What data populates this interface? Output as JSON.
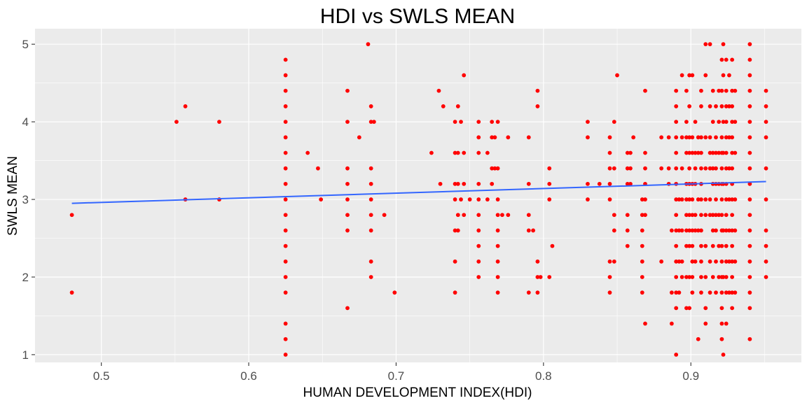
{
  "chart_data": {
    "type": "scatter",
    "title": "HDI vs SWLS MEAN",
    "xlabel": "HUMAN DEVELOPMENT INDEX(HDI)",
    "ylabel": "SWLS MEAN",
    "xlim": [
      0.455,
      0.975
    ],
    "ylim": [
      0.9,
      5.2
    ],
    "x_ticks": [
      0.5,
      0.6,
      0.7,
      0.8,
      0.9
    ],
    "x_tick_labels": [
      "0.5",
      "0.6",
      "0.7",
      "0.8",
      "0.9"
    ],
    "y_ticks": [
      1,
      2,
      3,
      4,
      5
    ],
    "y_tick_labels": [
      "1",
      "2",
      "3",
      "4",
      "5"
    ],
    "grid": true,
    "background_color": "#EBEBEB",
    "grid_color": "#FFFFFF",
    "point_color": "#FF0000",
    "line_color": "#3366FF",
    "trend_line": {
      "x": [
        0.48,
        0.951
      ],
      "y": [
        2.95,
        3.23
      ]
    },
    "points": [
      [
        0.48,
        2.8
      ],
      [
        0.48,
        1.8
      ],
      [
        0.551,
        4.0
      ],
      [
        0.557,
        4.2
      ],
      [
        0.557,
        3.0
      ],
      [
        0.58,
        4.0
      ],
      [
        0.58,
        3.0
      ],
      [
        0.625,
        4.8
      ],
      [
        0.625,
        4.6
      ],
      [
        0.625,
        4.4
      ],
      [
        0.625,
        4.2
      ],
      [
        0.625,
        4.0
      ],
      [
        0.625,
        3.8
      ],
      [
        0.625,
        3.6
      ],
      [
        0.625,
        3.4
      ],
      [
        0.625,
        3.2
      ],
      [
        0.625,
        3.0
      ],
      [
        0.625,
        2.8
      ],
      [
        0.625,
        2.6
      ],
      [
        0.625,
        2.4
      ],
      [
        0.625,
        2.2
      ],
      [
        0.625,
        2.0
      ],
      [
        0.625,
        1.8
      ],
      [
        0.625,
        1.4
      ],
      [
        0.625,
        1.2
      ],
      [
        0.625,
        1.0
      ],
      [
        0.64,
        3.6
      ],
      [
        0.647,
        3.4
      ],
      [
        0.649,
        3.0
      ],
      [
        0.667,
        4.4
      ],
      [
        0.667,
        4.0
      ],
      [
        0.667,
        3.4
      ],
      [
        0.667,
        3.2
      ],
      [
        0.667,
        3.0
      ],
      [
        0.667,
        2.8
      ],
      [
        0.667,
        2.6
      ],
      [
        0.667,
        1.6
      ],
      [
        0.675,
        3.8
      ],
      [
        0.681,
        5.0
      ],
      [
        0.683,
        4.2
      ],
      [
        0.683,
        4.0
      ],
      [
        0.683,
        3.4
      ],
      [
        0.683,
        3.2
      ],
      [
        0.683,
        3.0
      ],
      [
        0.683,
        2.8
      ],
      [
        0.683,
        2.6
      ],
      [
        0.683,
        2.2
      ],
      [
        0.683,
        2.0
      ],
      [
        0.685,
        4.0
      ],
      [
        0.692,
        2.8
      ],
      [
        0.699,
        1.8
      ],
      [
        0.724,
        3.6
      ],
      [
        0.729,
        4.4
      ],
      [
        0.73,
        3.2
      ],
      [
        0.732,
        4.2
      ],
      [
        0.74,
        4.0
      ],
      [
        0.74,
        3.6
      ],
      [
        0.74,
        3.2
      ],
      [
        0.74,
        3.0
      ],
      [
        0.74,
        2.6
      ],
      [
        0.74,
        2.2
      ],
      [
        0.74,
        1.8
      ],
      [
        0.742,
        4.2
      ],
      [
        0.742,
        3.6
      ],
      [
        0.742,
        3.2
      ],
      [
        0.742,
        2.8
      ],
      [
        0.742,
        2.6
      ],
      [
        0.744,
        4.0
      ],
      [
        0.744,
        3.0
      ],
      [
        0.746,
        4.6
      ],
      [
        0.746,
        3.6
      ],
      [
        0.746,
        3.2
      ],
      [
        0.746,
        2.8
      ],
      [
        0.75,
        3.0
      ],
      [
        0.756,
        4.0
      ],
      [
        0.756,
        3.8
      ],
      [
        0.756,
        3.6
      ],
      [
        0.756,
        3.2
      ],
      [
        0.756,
        3.0
      ],
      [
        0.756,
        2.8
      ],
      [
        0.756,
        2.6
      ],
      [
        0.756,
        2.4
      ],
      [
        0.756,
        2.2
      ],
      [
        0.756,
        2.0
      ],
      [
        0.762,
        3.6
      ],
      [
        0.762,
        3.0
      ],
      [
        0.765,
        4.0
      ],
      [
        0.765,
        3.8
      ],
      [
        0.765,
        3.4
      ],
      [
        0.765,
        3.2
      ],
      [
        0.767,
        3.8
      ],
      [
        0.767,
        3.4
      ],
      [
        0.769,
        4.0
      ],
      [
        0.769,
        3.4
      ],
      [
        0.769,
        3.0
      ],
      [
        0.769,
        2.8
      ],
      [
        0.769,
        2.6
      ],
      [
        0.769,
        2.4
      ],
      [
        0.769,
        2.2
      ],
      [
        0.769,
        2.0
      ],
      [
        0.769,
        1.8
      ],
      [
        0.772,
        2.8
      ],
      [
        0.776,
        3.8
      ],
      [
        0.776,
        2.8
      ],
      [
        0.79,
        3.8
      ],
      [
        0.79,
        3.2
      ],
      [
        0.79,
        2.8
      ],
      [
        0.79,
        2.6
      ],
      [
        0.79,
        1.8
      ],
      [
        0.793,
        2.6
      ],
      [
        0.796,
        4.4
      ],
      [
        0.796,
        4.2
      ],
      [
        0.796,
        2.2
      ],
      [
        0.796,
        2.0
      ],
      [
        0.796,
        1.8
      ],
      [
        0.798,
        2.0
      ],
      [
        0.804,
        3.4
      ],
      [
        0.804,
        3.2
      ],
      [
        0.804,
        3.0
      ],
      [
        0.804,
        2.0
      ],
      [
        0.806,
        2.4
      ],
      [
        0.83,
        4.0
      ],
      [
        0.83,
        3.8
      ],
      [
        0.83,
        3.2
      ],
      [
        0.83,
        3.0
      ],
      [
        0.838,
        3.2
      ],
      [
        0.845,
        3.8
      ],
      [
        0.845,
        3.6
      ],
      [
        0.845,
        3.4
      ],
      [
        0.845,
        3.2
      ],
      [
        0.845,
        3.0
      ],
      [
        0.845,
        2.2
      ],
      [
        0.845,
        2.0
      ],
      [
        0.845,
        1.8
      ],
      [
        0.848,
        4.0
      ],
      [
        0.848,
        3.4
      ],
      [
        0.848,
        2.8
      ],
      [
        0.848,
        2.6
      ],
      [
        0.848,
        2.2
      ],
      [
        0.85,
        4.6
      ],
      [
        0.857,
        3.6
      ],
      [
        0.857,
        3.4
      ],
      [
        0.857,
        3.2
      ],
      [
        0.857,
        2.8
      ],
      [
        0.857,
        2.6
      ],
      [
        0.857,
        2.4
      ],
      [
        0.859,
        3.6
      ],
      [
        0.859,
        3.4
      ],
      [
        0.859,
        3.2
      ],
      [
        0.861,
        3.8
      ],
      [
        0.867,
        3.0
      ],
      [
        0.867,
        2.8
      ],
      [
        0.867,
        2.6
      ],
      [
        0.867,
        2.4
      ],
      [
        0.867,
        2.2
      ],
      [
        0.867,
        2.0
      ],
      [
        0.867,
        1.8
      ],
      [
        0.869,
        4.4
      ],
      [
        0.869,
        3.6
      ],
      [
        0.869,
        3.4
      ],
      [
        0.869,
        3.2
      ],
      [
        0.869,
        3.0
      ],
      [
        0.869,
        2.8
      ],
      [
        0.869,
        1.4
      ],
      [
        0.88,
        3.8
      ],
      [
        0.88,
        3.4
      ],
      [
        0.88,
        2.2
      ],
      [
        0.885,
        3.8
      ],
      [
        0.885,
        3.4
      ],
      [
        0.885,
        3.2
      ],
      [
        0.887,
        2.6
      ],
      [
        0.887,
        1.8
      ],
      [
        0.887,
        1.4
      ],
      [
        0.89,
        4.4
      ],
      [
        0.89,
        4.2
      ],
      [
        0.89,
        4.0
      ],
      [
        0.89,
        3.8
      ],
      [
        0.89,
        3.6
      ],
      [
        0.89,
        3.4
      ],
      [
        0.89,
        3.2
      ],
      [
        0.89,
        3.0
      ],
      [
        0.89,
        2.8
      ],
      [
        0.89,
        2.6
      ],
      [
        0.89,
        2.4
      ],
      [
        0.89,
        2.2
      ],
      [
        0.89,
        2.0
      ],
      [
        0.89,
        1.8
      ],
      [
        0.89,
        1.6
      ],
      [
        0.89,
        1.0
      ],
      [
        0.892,
        3.0
      ],
      [
        0.892,
        2.6
      ],
      [
        0.892,
        2.2
      ],
      [
        0.892,
        1.8
      ],
      [
        0.894,
        4.6
      ],
      [
        0.894,
        3.8
      ],
      [
        0.894,
        3.4
      ],
      [
        0.894,
        3.0
      ],
      [
        0.894,
        2.6
      ],
      [
        0.894,
        2.2
      ],
      [
        0.894,
        2.0
      ],
      [
        0.897,
        4.4
      ],
      [
        0.897,
        4.0
      ],
      [
        0.897,
        3.8
      ],
      [
        0.897,
        3.6
      ],
      [
        0.897,
        3.2
      ],
      [
        0.897,
        3.0
      ],
      [
        0.897,
        2.8
      ],
      [
        0.897,
        2.6
      ],
      [
        0.897,
        2.4
      ],
      [
        0.897,
        2.0
      ],
      [
        0.897,
        1.6
      ],
      [
        0.899,
        4.6
      ],
      [
        0.899,
        4.2
      ],
      [
        0.899,
        3.8
      ],
      [
        0.899,
        3.6
      ],
      [
        0.899,
        3.4
      ],
      [
        0.899,
        3.2
      ],
      [
        0.899,
        3.0
      ],
      [
        0.899,
        2.8
      ],
      [
        0.899,
        2.6
      ],
      [
        0.899,
        2.4
      ],
      [
        0.899,
        2.0
      ],
      [
        0.899,
        1.6
      ],
      [
        0.901,
        4.6
      ],
      [
        0.901,
        3.8
      ],
      [
        0.901,
        3.6
      ],
      [
        0.901,
        3.2
      ],
      [
        0.901,
        3.0
      ],
      [
        0.901,
        2.8
      ],
      [
        0.901,
        2.6
      ],
      [
        0.901,
        2.4
      ],
      [
        0.901,
        2.2
      ],
      [
        0.901,
        2.0
      ],
      [
        0.901,
        1.8
      ],
      [
        0.903,
        4.0
      ],
      [
        0.903,
        3.6
      ],
      [
        0.903,
        3.4
      ],
      [
        0.903,
        3.2
      ],
      [
        0.903,
        2.8
      ],
      [
        0.903,
        2.6
      ],
      [
        0.903,
        2.2
      ],
      [
        0.905,
        3.8
      ],
      [
        0.905,
        3.6
      ],
      [
        0.905,
        3.0
      ],
      [
        0.905,
        2.6
      ],
      [
        0.905,
        1.2
      ],
      [
        0.907,
        4.4
      ],
      [
        0.907,
        4.2
      ],
      [
        0.907,
        3.8
      ],
      [
        0.907,
        3.6
      ],
      [
        0.907,
        3.4
      ],
      [
        0.907,
        3.2
      ],
      [
        0.907,
        3.0
      ],
      [
        0.907,
        2.8
      ],
      [
        0.907,
        2.6
      ],
      [
        0.907,
        2.4
      ],
      [
        0.907,
        2.2
      ],
      [
        0.907,
        2.0
      ],
      [
        0.907,
        1.8
      ],
      [
        0.91,
        5.0
      ],
      [
        0.91,
        4.6
      ],
      [
        0.91,
        3.8
      ],
      [
        0.91,
        3.4
      ],
      [
        0.91,
        3.0
      ],
      [
        0.91,
        2.8
      ],
      [
        0.91,
        2.4
      ],
      [
        0.91,
        2.0
      ],
      [
        0.91,
        1.6
      ],
      [
        0.91,
        1.4
      ],
      [
        0.913,
        5.0
      ],
      [
        0.913,
        4.2
      ],
      [
        0.913,
        3.8
      ],
      [
        0.913,
        3.6
      ],
      [
        0.913,
        3.4
      ],
      [
        0.913,
        3.0
      ],
      [
        0.913,
        2.8
      ],
      [
        0.913,
        2.2
      ],
      [
        0.913,
        1.8
      ],
      [
        0.915,
        4.4
      ],
      [
        0.915,
        4.0
      ],
      [
        0.915,
        3.6
      ],
      [
        0.915,
        3.4
      ],
      [
        0.915,
        3.2
      ],
      [
        0.915,
        2.8
      ],
      [
        0.915,
        2.6
      ],
      [
        0.915,
        2.4
      ],
      [
        0.915,
        2.0
      ],
      [
        0.917,
        4.2
      ],
      [
        0.917,
        3.8
      ],
      [
        0.917,
        3.6
      ],
      [
        0.917,
        3.4
      ],
      [
        0.917,
        3.2
      ],
      [
        0.917,
        3.0
      ],
      [
        0.917,
        2.8
      ],
      [
        0.917,
        2.6
      ],
      [
        0.917,
        2.2
      ],
      [
        0.917,
        1.8
      ],
      [
        0.919,
        4.4
      ],
      [
        0.919,
        4.0
      ],
      [
        0.919,
        3.6
      ],
      [
        0.919,
        3.2
      ],
      [
        0.919,
        2.8
      ],
      [
        0.919,
        2.4
      ],
      [
        0.919,
        2.0
      ],
      [
        0.921,
        4.8
      ],
      [
        0.921,
        4.4
      ],
      [
        0.921,
        4.2
      ],
      [
        0.921,
        3.8
      ],
      [
        0.921,
        3.6
      ],
      [
        0.921,
        3.4
      ],
      [
        0.921,
        3.2
      ],
      [
        0.921,
        3.0
      ],
      [
        0.921,
        2.8
      ],
      [
        0.921,
        2.6
      ],
      [
        0.921,
        2.4
      ],
      [
        0.921,
        2.2
      ],
      [
        0.921,
        2.0
      ],
      [
        0.921,
        1.8
      ],
      [
        0.921,
        1.6
      ],
      [
        0.921,
        1.4
      ],
      [
        0.921,
        1.2
      ],
      [
        0.922,
        5.0
      ],
      [
        0.922,
        4.6
      ],
      [
        0.922,
        4.0
      ],
      [
        0.922,
        3.6
      ],
      [
        0.922,
        3.2
      ],
      [
        0.922,
        2.6
      ],
      [
        0.922,
        2.0
      ],
      [
        0.922,
        1.0
      ],
      [
        0.924,
        4.8
      ],
      [
        0.924,
        4.4
      ],
      [
        0.924,
        4.2
      ],
      [
        0.924,
        4.0
      ],
      [
        0.924,
        3.8
      ],
      [
        0.924,
        3.6
      ],
      [
        0.924,
        3.4
      ],
      [
        0.924,
        3.2
      ],
      [
        0.924,
        3.0
      ],
      [
        0.924,
        2.8
      ],
      [
        0.924,
        2.6
      ],
      [
        0.924,
        2.4
      ],
      [
        0.924,
        2.2
      ],
      [
        0.924,
        2.0
      ],
      [
        0.924,
        1.8
      ],
      [
        0.924,
        1.4
      ],
      [
        0.926,
        4.6
      ],
      [
        0.926,
        4.2
      ],
      [
        0.926,
        3.8
      ],
      [
        0.926,
        3.4
      ],
      [
        0.926,
        3.0
      ],
      [
        0.926,
        2.6
      ],
      [
        0.926,
        2.2
      ],
      [
        0.926,
        1.8
      ],
      [
        0.928,
        4.8
      ],
      [
        0.928,
        4.4
      ],
      [
        0.928,
        4.2
      ],
      [
        0.928,
        4.0
      ],
      [
        0.928,
        3.8
      ],
      [
        0.928,
        3.6
      ],
      [
        0.928,
        3.4
      ],
      [
        0.928,
        3.2
      ],
      [
        0.928,
        3.0
      ],
      [
        0.928,
        2.8
      ],
      [
        0.928,
        2.6
      ],
      [
        0.928,
        2.4
      ],
      [
        0.928,
        2.2
      ],
      [
        0.928,
        2.0
      ],
      [
        0.928,
        1.8
      ],
      [
        0.928,
        1.6
      ],
      [
        0.93,
        4.4
      ],
      [
        0.93,
        4.0
      ],
      [
        0.93,
        3.6
      ],
      [
        0.93,
        3.0
      ],
      [
        0.93,
        2.6
      ],
      [
        0.93,
        2.2
      ],
      [
        0.93,
        1.8
      ],
      [
        0.94,
        5.0
      ],
      [
        0.94,
        4.8
      ],
      [
        0.94,
        4.6
      ],
      [
        0.94,
        4.4
      ],
      [
        0.94,
        4.2
      ],
      [
        0.94,
        4.0
      ],
      [
        0.94,
        3.8
      ],
      [
        0.94,
        3.6
      ],
      [
        0.94,
        3.4
      ],
      [
        0.94,
        3.2
      ],
      [
        0.94,
        3.0
      ],
      [
        0.94,
        2.8
      ],
      [
        0.94,
        2.6
      ],
      [
        0.94,
        2.4
      ],
      [
        0.94,
        2.2
      ],
      [
        0.94,
        2.0
      ],
      [
        0.94,
        1.8
      ],
      [
        0.94,
        1.6
      ],
      [
        0.94,
        1.2
      ],
      [
        0.951,
        4.4
      ],
      [
        0.951,
        4.2
      ],
      [
        0.951,
        4.0
      ],
      [
        0.951,
        3.8
      ],
      [
        0.951,
        3.4
      ],
      [
        0.951,
        3.0
      ],
      [
        0.951,
        2.6
      ],
      [
        0.951,
        2.4
      ],
      [
        0.951,
        2.2
      ],
      [
        0.951,
        2.0
      ]
    ]
  }
}
